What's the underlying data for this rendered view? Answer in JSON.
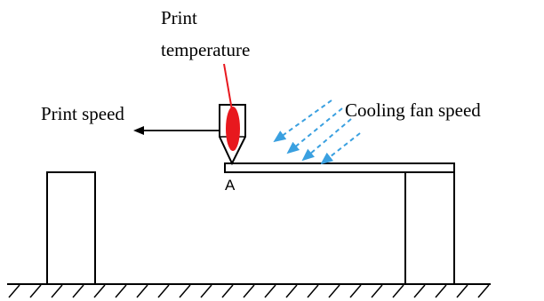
{
  "labels": {
    "print_temperature_line1": "Print",
    "print_temperature_line2": "temperature",
    "print_speed": "Print speed",
    "cooling_fan_speed": "Cooling fan speed",
    "point_a": "A"
  },
  "colors": {
    "stroke": "#000000",
    "nozzle_hotspot": "#e8181e",
    "callout_line": "#e8181e",
    "fan_arrows": "#3aa0e0",
    "background": "#ffffff"
  },
  "icons": {
    "nozzle": "print-nozzle-icon",
    "speed_arrow": "arrow-left-icon",
    "fan_arrows": "dashed-arrow-icon",
    "ground": "hatched-ground-icon"
  }
}
